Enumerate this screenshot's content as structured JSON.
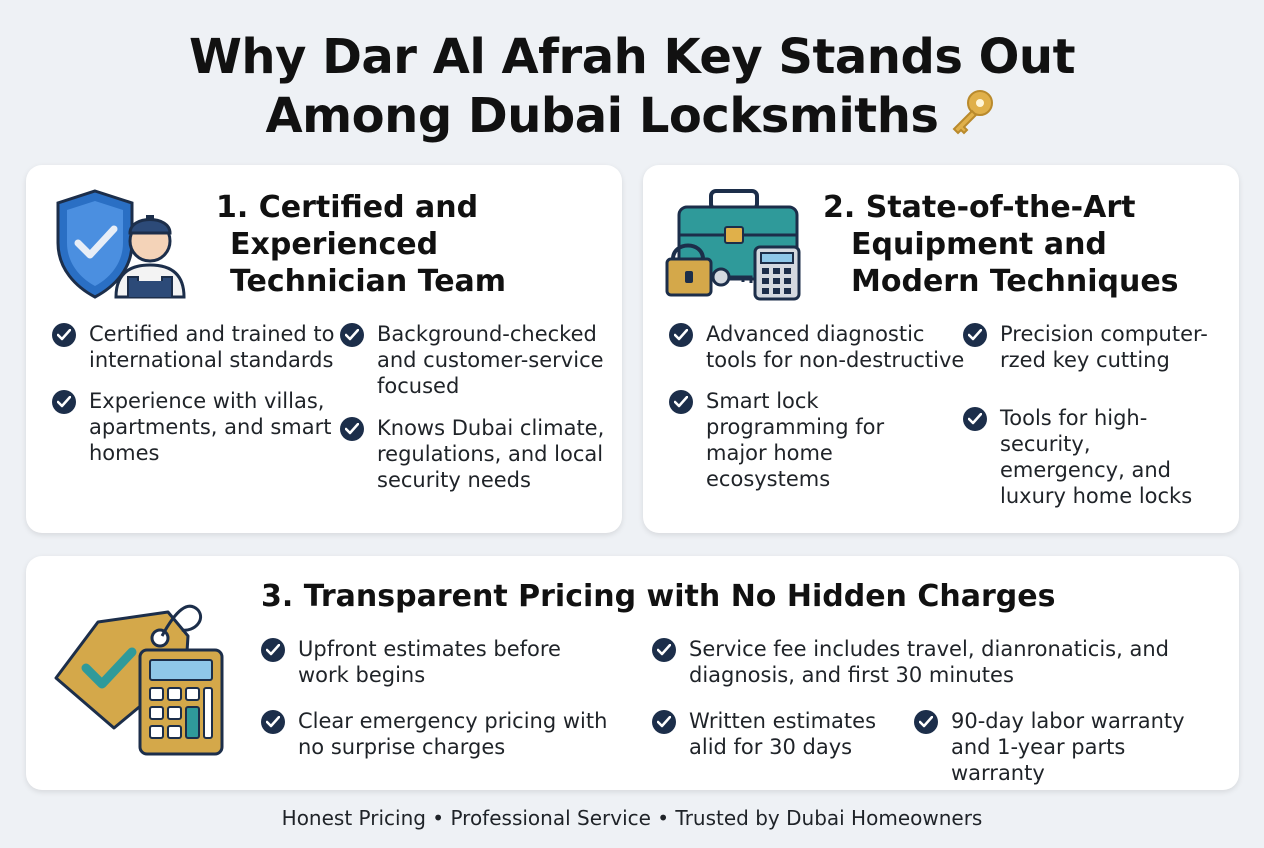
{
  "title": {
    "line1": "Why Dar Al Afrah Key Stands Out",
    "line2": "Among Dubai Locksmiths"
  },
  "cards": [
    {
      "title_lines": [
        "1. Certified and",
        "Experienced",
        "Technician Team"
      ],
      "illustration": "shield-technician-icon",
      "items": [
        "Certified and trained to international standards",
        "Experience with villas, apartments, and smart homes",
        "Background-checked and customer-service focused",
        "Knows Dubai climate, regulations, and local security needs"
      ]
    },
    {
      "title_lines": [
        "2. State-of-the-Art",
        "Equipment and",
        "Modern Techniques"
      ],
      "illustration": "toolbox-lock-icon",
      "items": [
        "Advanced diagnostic tools for non-destructive",
        "Smart lock programming for major home ecosystems",
        "Precision computer-rzed key cutting",
        "Tools for high-security, emergency, and luxury home locks"
      ]
    },
    {
      "title": "3. Transparent Pricing with No Hidden Charges",
      "illustration": "price-tag-calculator-icon",
      "items": [
        "Upfront estimates before work begins",
        "Clear emergency pricing with no surprise charges",
        "Service fee includes travel, dianronaticis, and diagnosis, and first 30 minutes",
        "Written estimates alid for 30 days",
        "90-day labor warranty and 1-year parts warranty"
      ]
    }
  ],
  "footer": "Honest Pricing • Professional Service • Trusted by Dubai Homeowners",
  "colors": {
    "background": "#eef1f5",
    "card": "#ffffff",
    "check": "#1c2e4a",
    "teal": "#2f9a9a",
    "gold": "#d4a84a"
  }
}
